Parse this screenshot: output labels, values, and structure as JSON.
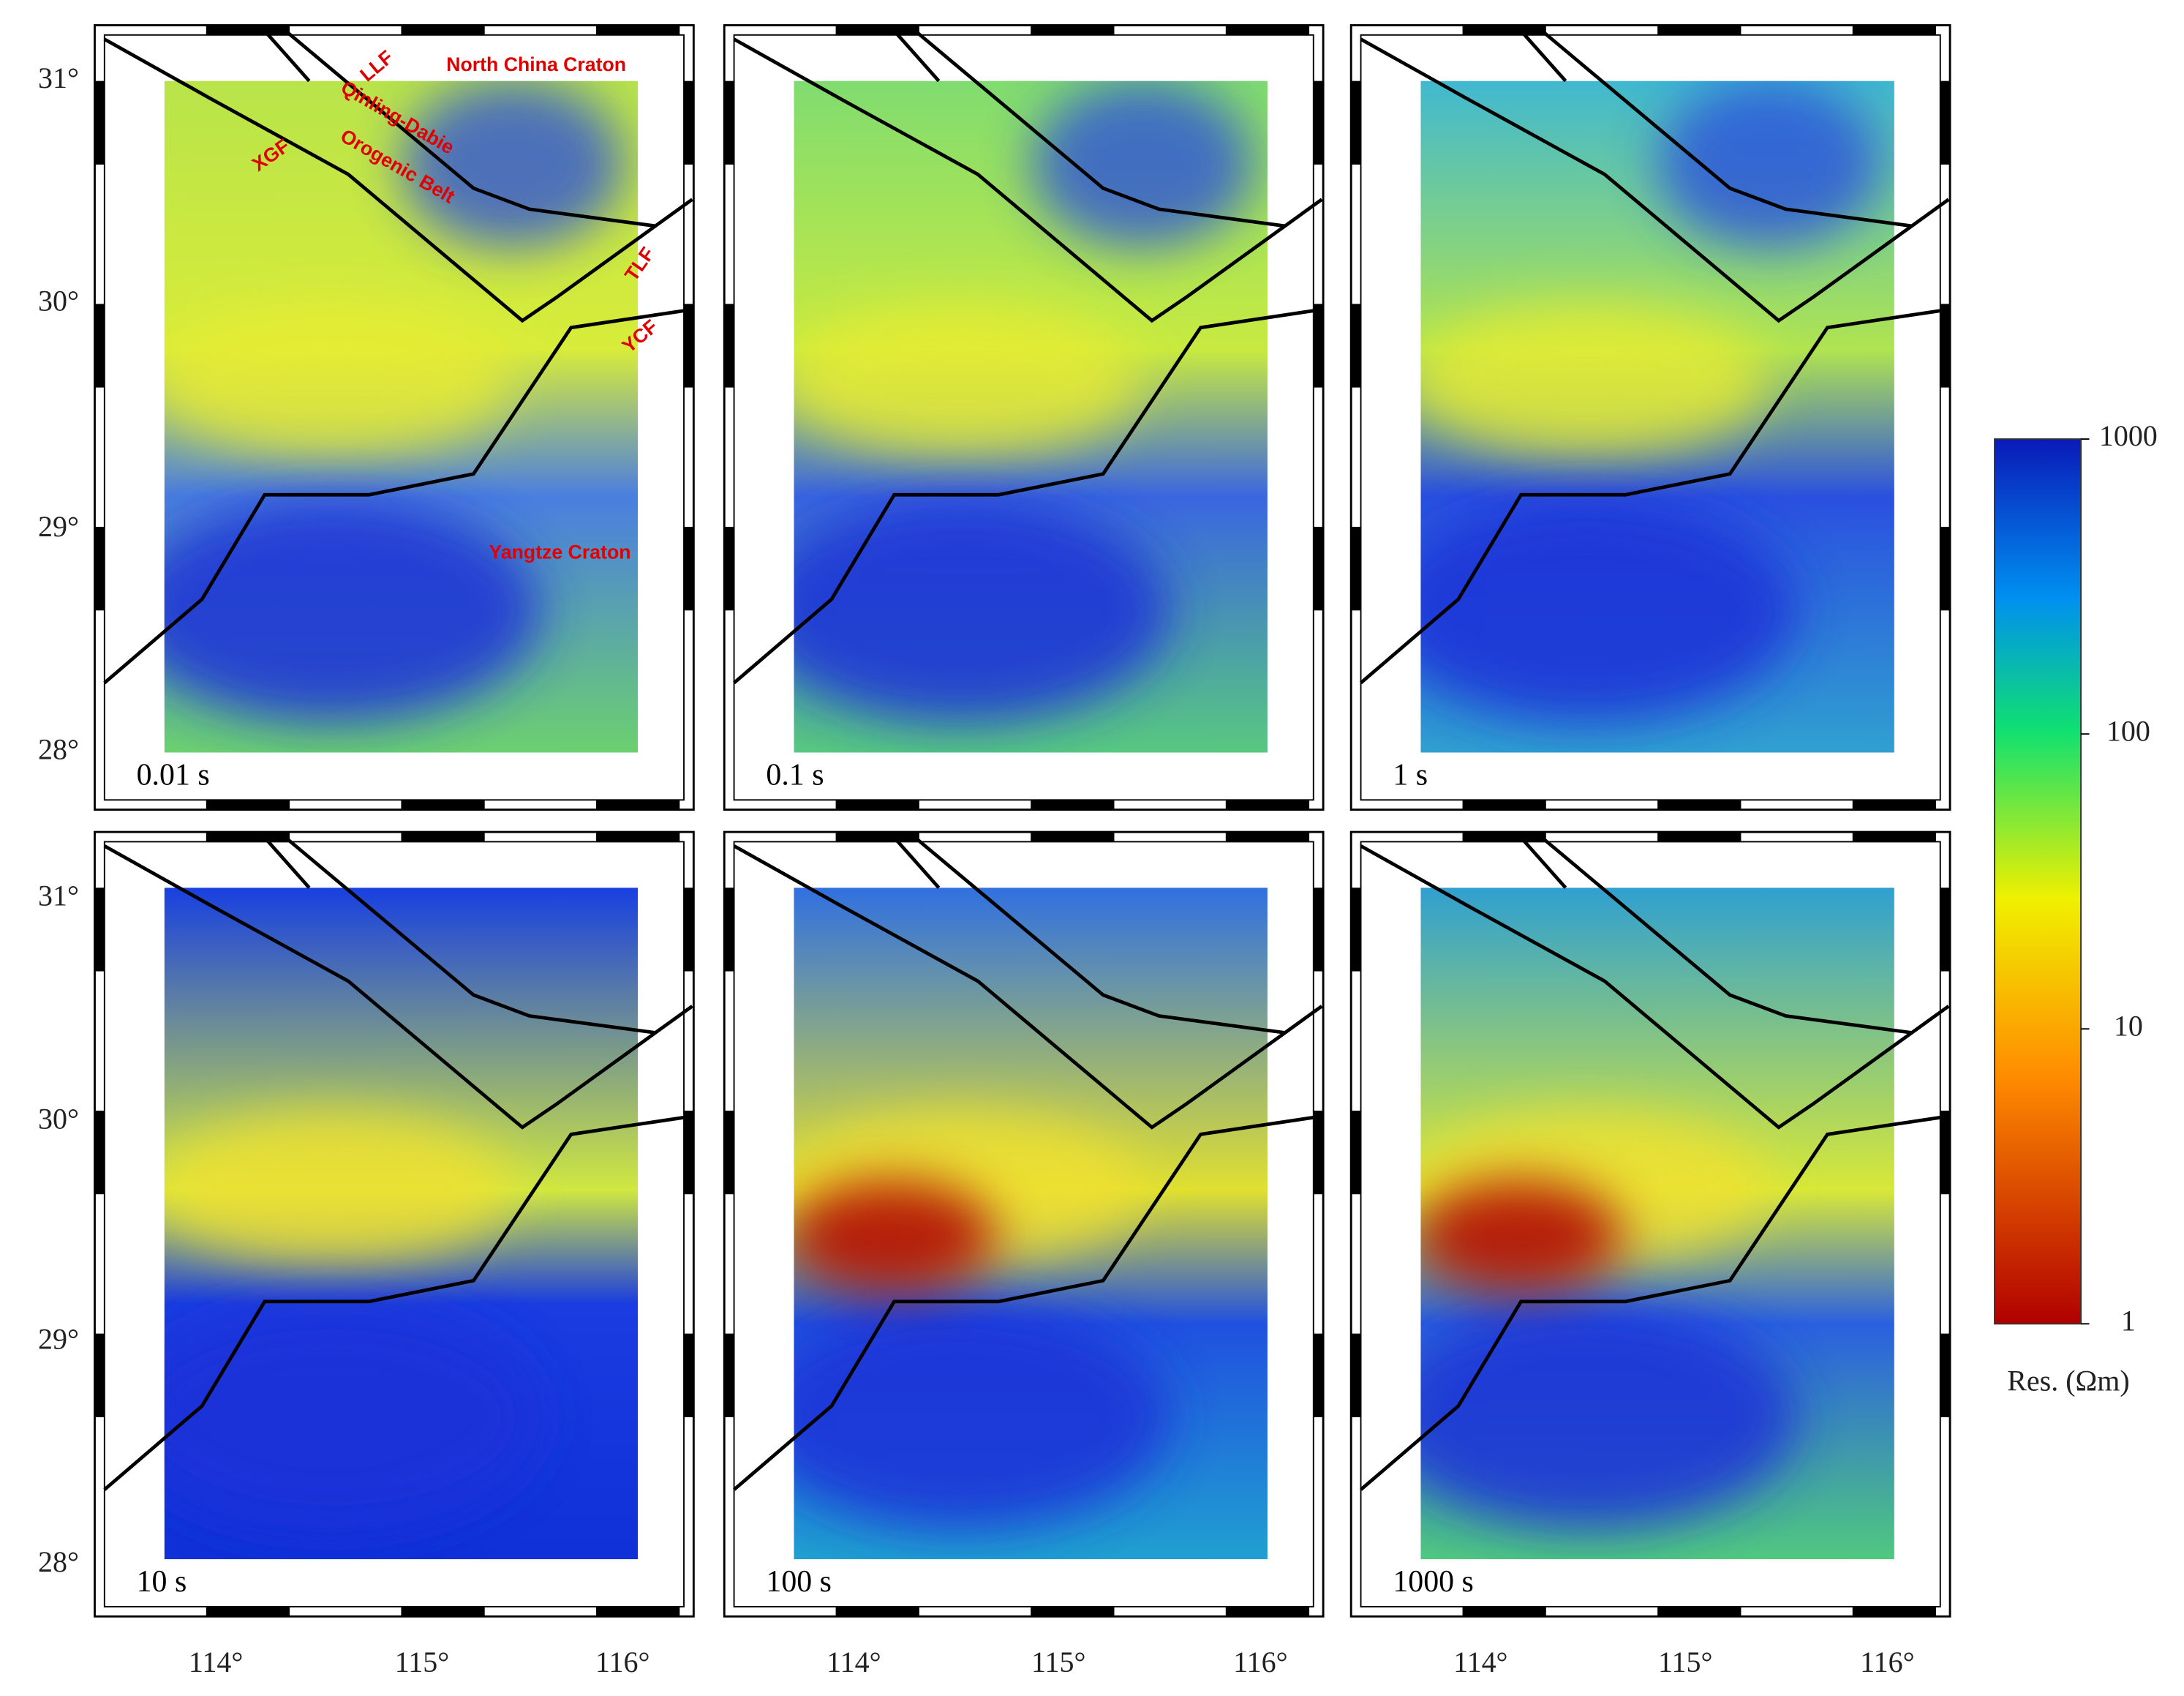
{
  "axes": {
    "lat": [
      "31°",
      "30°",
      "29°",
      "28°"
    ],
    "lon": [
      "114°",
      "115°",
      "116°"
    ]
  },
  "panels": [
    {
      "label": "0.01 s"
    },
    {
      "label": "0.1 s"
    },
    {
      "label": "1 s"
    },
    {
      "label": "10 s"
    },
    {
      "label": "100 s"
    },
    {
      "label": "1000 s"
    }
  ],
  "annotations": [
    "North China Craton",
    "LLF",
    "Qinling-Dabie",
    "Orogenic Belt",
    "XGF",
    "TLF",
    "YCF",
    "Yangtze Craton"
  ],
  "colorbar": {
    "ticks": [
      1,
      10,
      100,
      1000
    ],
    "label": "Res. (Ωm)"
  }
}
